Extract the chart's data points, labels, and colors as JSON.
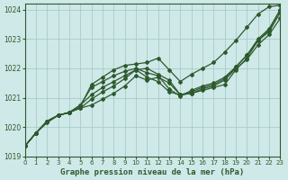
{
  "xlabel": "Graphe pression niveau de la mer (hPa)",
  "xlim": [
    0,
    23
  ],
  "ylim": [
    1019,
    1024.2
  ],
  "yticks": [
    1019,
    1020,
    1021,
    1022,
    1023,
    1024
  ],
  "xticks": [
    0,
    1,
    2,
    3,
    4,
    5,
    6,
    7,
    8,
    9,
    10,
    11,
    12,
    13,
    14,
    15,
    16,
    17,
    18,
    19,
    20,
    21,
    22,
    23
  ],
  "bg_color": "#cfe8e8",
  "grid_color": "#a0c8c0",
  "line_color": "#2d5a2d",
  "series": [
    [
      1019.35,
      1019.8,
      1020.2,
      1020.4,
      1020.5,
      1020.65,
      1020.75,
      1020.95,
      1021.15,
      1021.4,
      1021.75,
      1021.6,
      1021.7,
      1021.5,
      1021.1,
      1021.15,
      1021.25,
      1021.35,
      1021.45,
      1021.95,
      1022.35,
      1022.95,
      1023.25,
      1023.9
    ],
    [
      1019.35,
      1019.8,
      1020.2,
      1020.4,
      1020.5,
      1020.65,
      1020.95,
      1021.2,
      1021.4,
      1021.65,
      1021.95,
      1021.7,
      1021.55,
      1021.2,
      1021.1,
      1021.15,
      1021.3,
      1021.4,
      1021.6,
      1022.0,
      1022.3,
      1022.8,
      1023.15,
      1023.7
    ],
    [
      1019.35,
      1019.8,
      1020.2,
      1020.4,
      1020.5,
      1020.75,
      1021.35,
      1021.55,
      1021.75,
      1021.9,
      1022.0,
      1021.85,
      1021.75,
      1021.3,
      1021.05,
      1021.25,
      1021.4,
      1021.5,
      1021.7,
      1022.05,
      1022.45,
      1023.0,
      1023.35,
      1024.0
    ],
    [
      1019.35,
      1019.8,
      1020.2,
      1020.4,
      1020.5,
      1020.75,
      1021.1,
      1021.35,
      1021.55,
      1021.75,
      1021.95,
      1022.0,
      1021.8,
      1021.6,
      1021.1,
      1021.2,
      1021.35,
      1021.45,
      1021.65,
      1022.05,
      1022.45,
      1022.95,
      1023.3,
      1024.0
    ]
  ],
  "series_top": [
    1019.35,
    1019.8,
    1020.15,
    1020.4,
    1020.5,
    1020.7,
    1021.45,
    1021.7,
    1021.95,
    1022.1,
    1022.15,
    1022.2,
    1022.35,
    1021.95,
    1021.55,
    1021.8,
    1022.0,
    1022.2,
    1022.55,
    1022.95,
    1023.4,
    1023.85,
    1024.1,
    1024.15
  ]
}
